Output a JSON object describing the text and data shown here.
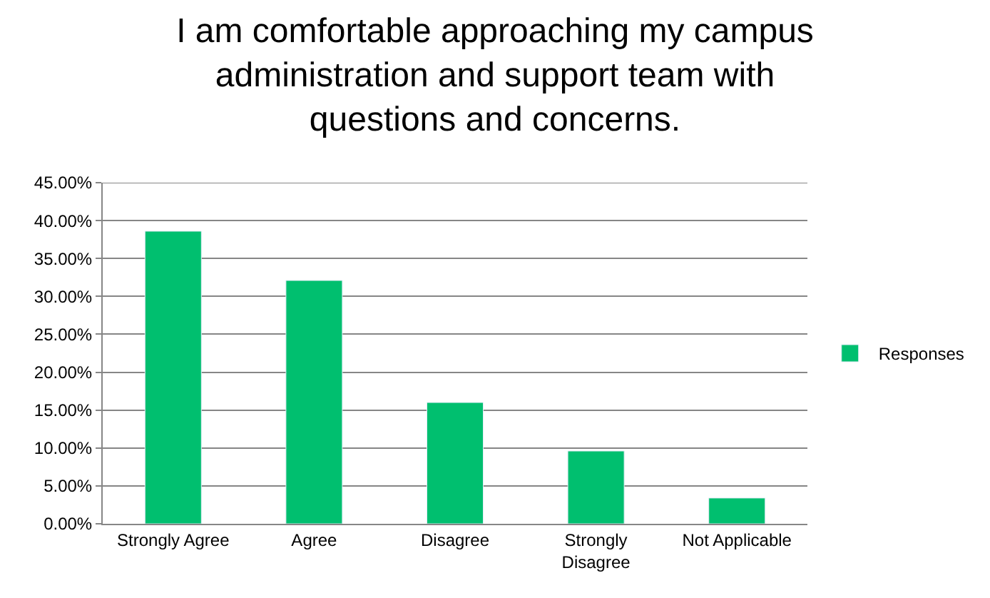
{
  "chart_data": {
    "type": "bar",
    "title": "I am comfortable approaching my campus administration and support team with questions and concerns.",
    "categories": [
      "Strongly Agree",
      "Agree",
      "Disagree",
      "Strongly Disagree",
      "Not Applicable"
    ],
    "series": [
      {
        "name": "Responses",
        "color": "#00bf6f",
        "values": [
          38.6,
          32.1,
          16.0,
          9.6,
          3.4
        ]
      }
    ],
    "ylim": [
      0,
      45
    ],
    "yticks": [
      {
        "value": 0,
        "label": "0.00%"
      },
      {
        "value": 5,
        "label": "5.00%"
      },
      {
        "value": 10,
        "label": "10.00%"
      },
      {
        "value": 15,
        "label": "15.00%"
      },
      {
        "value": 20,
        "label": "20.00%"
      },
      {
        "value": 25,
        "label": "25.00%"
      },
      {
        "value": 30,
        "label": "30.00%"
      },
      {
        "value": 35,
        "label": "35.00%"
      },
      {
        "value": 40,
        "label": "40.00%"
      },
      {
        "value": 45,
        "label": "45.00%"
      }
    ],
    "grid": "y",
    "legend": "right"
  }
}
